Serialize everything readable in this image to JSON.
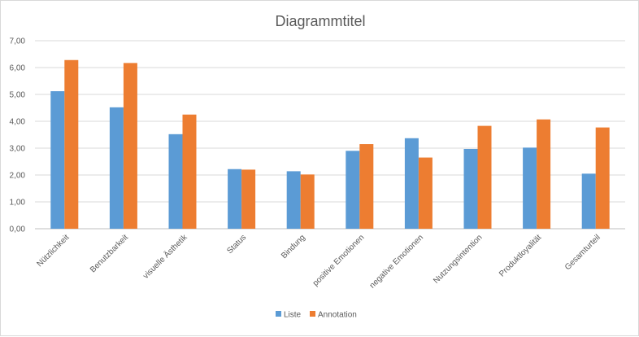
{
  "chart_data": {
    "type": "bar",
    "title": "Diagrammtitel",
    "xlabel": "",
    "ylabel": "",
    "ylim": [
      0,
      7
    ],
    "y_ticks": [
      "0,00",
      "1,00",
      "2,00",
      "3,00",
      "4,00",
      "5,00",
      "6,00",
      "7,00"
    ],
    "categories": [
      "Nützlichkeit",
      "Benutzbarkeit",
      "visuelle Ästhetik",
      "Status",
      "Bindung",
      "positive Emotionen",
      "negative Emotionen",
      "Nutzungsintention",
      "Produktloyalität",
      "Gesamturteil"
    ],
    "series": [
      {
        "name": "Liste",
        "color": "#5b9bd5",
        "values": [
          5.12,
          4.52,
          3.52,
          2.22,
          2.14,
          2.9,
          3.37,
          2.97,
          3.02,
          2.05
        ]
      },
      {
        "name": "Annotation",
        "color": "#ed7d31",
        "values": [
          6.28,
          6.17,
          4.25,
          2.2,
          2.02,
          3.15,
          2.65,
          3.83,
          4.07,
          3.77
        ]
      }
    ],
    "grid": true,
    "legend_position": "bottom"
  }
}
